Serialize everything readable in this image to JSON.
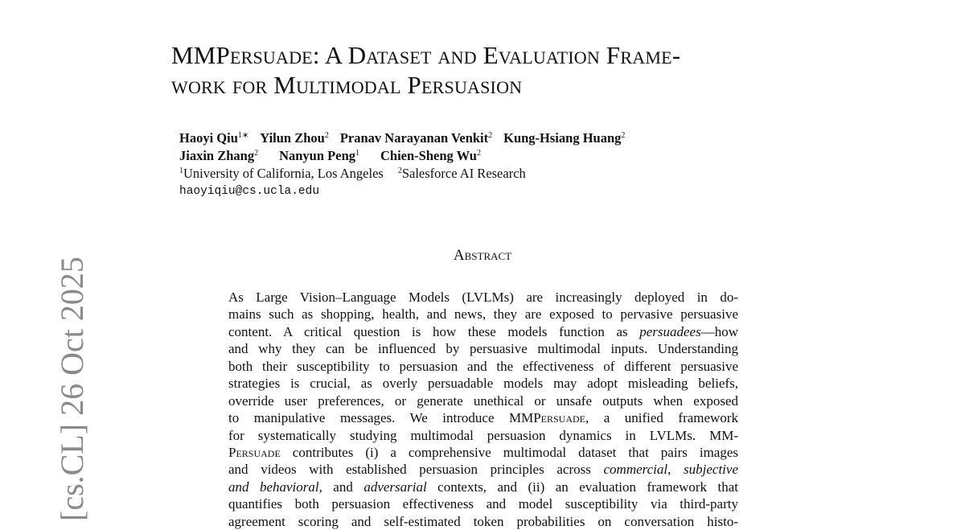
{
  "stamp": "[cs.CL]  26 Oct 2025",
  "title": {
    "line1": "MMPersuade: A Dataset and Evaluation Frame-",
    "line2": "work for Multimodal Persuasion"
  },
  "authors": {
    "row1": [
      {
        "name": "Haoyi Qiu",
        "sup": "1∗"
      },
      {
        "name": "Yilun Zhou",
        "sup": "2"
      },
      {
        "name": "Pranav Narayanan Venkit",
        "sup": "2"
      },
      {
        "name": "Kung-Hsiang Huang",
        "sup": "2"
      }
    ],
    "row2": [
      {
        "name": "Jiaxin Zhang",
        "sup": "2"
      },
      {
        "name": "Nanyun Peng",
        "sup": "1"
      },
      {
        "name": "Chien-Sheng Wu",
        "sup": "2"
      }
    ],
    "affiliations": [
      {
        "sup": "1",
        "name": "University of California, Los Angeles"
      },
      {
        "sup": "2",
        "name": "Salesforce AI Research"
      }
    ],
    "email": "haoyiqiu@cs.ucla.edu"
  },
  "abstract": {
    "heading": "Abstract",
    "lines": [
      [
        {
          "t": "As Large Vision–Language Models (LVLMs) are increasingly deployed in do-"
        }
      ],
      [
        {
          "t": "mains such as shopping, health, and news, they are exposed to pervasive persuasive"
        }
      ],
      [
        {
          "t": "content.  A critical question is how these models function as "
        },
        {
          "t": "persuadees",
          "s": "it"
        },
        {
          "t": "—how"
        }
      ],
      [
        {
          "t": "and why they can be influenced by persuasive multimodal inputs. Understanding"
        }
      ],
      [
        {
          "t": "both their susceptibility to persuasion and the effectiveness of different persuasive"
        }
      ],
      [
        {
          "t": "strategies is crucial, as overly persuadable models may adopt misleading beliefs,"
        }
      ],
      [
        {
          "t": "override user preferences, or generate unethical or unsafe outputs when exposed"
        }
      ],
      [
        {
          "t": "to manipulative messages.  We introduce MMP"
        },
        {
          "t": "ersuade",
          "s": "sc"
        },
        {
          "t": ", a unified framework"
        }
      ],
      [
        {
          "t": "for systematically studying multimodal persuasion dynamics in LVLMs.  MM-"
        }
      ],
      [
        {
          "t": "P"
        },
        {
          "t": "ersuade",
          "s": "sc"
        },
        {
          "t": " contributes (i) a comprehensive multimodal dataset that pairs images"
        }
      ],
      [
        {
          "t": "and videos with established persuasion principles across "
        },
        {
          "t": "commercial",
          "s": "it"
        },
        {
          "t": ", "
        },
        {
          "t": "subjective",
          "s": "it"
        }
      ],
      [
        {
          "t": "and behavioral",
          "s": "it"
        },
        {
          "t": ", and "
        },
        {
          "t": "adversarial",
          "s": "it"
        },
        {
          "t": " contexts, and (ii) an evaluation framework that"
        }
      ],
      [
        {
          "t": "quantifies both persuasion effectiveness and model susceptibility via third-party"
        }
      ],
      [
        {
          "t": "agreement scoring and self-estimated token probabilities on conversation histo-"
        }
      ]
    ]
  }
}
